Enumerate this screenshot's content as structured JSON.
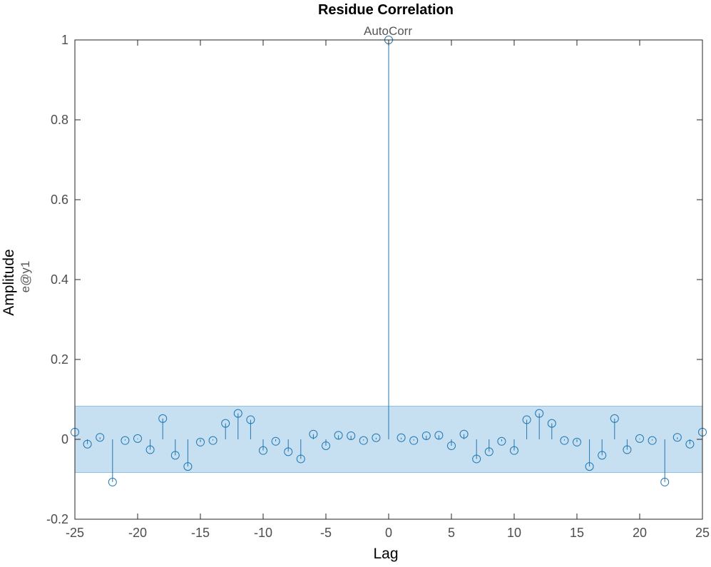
{
  "chart_data": {
    "type": "stem",
    "title": "Residue Correlation",
    "subtitle": "AutoCorr",
    "xlabel": "Lag",
    "ylabel": "Amplitude",
    "ylabel_sub": "e@y1",
    "xlim": [
      -25,
      25
    ],
    "ylim": [
      -0.2,
      1
    ],
    "xticks": [
      -25,
      -20,
      -15,
      -10,
      -5,
      0,
      5,
      10,
      15,
      20,
      25
    ],
    "xtick_labels": [
      "-25",
      "-20",
      "-15",
      "-10",
      "-5",
      "0",
      "5",
      "10",
      "15",
      "20",
      "25"
    ],
    "yticks": [
      -0.2,
      0,
      0.2,
      0.4,
      0.6,
      0.8,
      1
    ],
    "ytick_labels": [
      "-0.2",
      "0",
      "0.2",
      "0.4",
      "0.6",
      "0.8",
      "1"
    ],
    "confidence_band": [
      -0.083,
      0.083
    ],
    "grid": false,
    "colors": {
      "stem": "#1f77b4",
      "band_fill": "#c6e0f1",
      "band_edge": "#8cc0e3",
      "axis": "#262626"
    },
    "x": [
      -25,
      -24,
      -23,
      -22,
      -21,
      -20,
      -19,
      -18,
      -17,
      -16,
      -15,
      -14,
      -13,
      -12,
      -11,
      -10,
      -9,
      -8,
      -7,
      -6,
      -5,
      -4,
      -3,
      -2,
      -1,
      0,
      1,
      2,
      3,
      4,
      5,
      6,
      7,
      8,
      9,
      10,
      11,
      12,
      13,
      14,
      15,
      16,
      17,
      18,
      19,
      20,
      21,
      22,
      23,
      24,
      25
    ],
    "values": [
      0.018,
      -0.012,
      0.005,
      -0.107,
      -0.003,
      0.002,
      -0.026,
      0.052,
      -0.04,
      -0.068,
      -0.007,
      -0.003,
      0.04,
      0.065,
      0.049,
      -0.028,
      -0.005,
      -0.031,
      -0.049,
      0.013,
      -0.016,
      0.01,
      0.009,
      -0.003,
      0.004,
      1.0,
      0.004,
      -0.003,
      0.009,
      0.01,
      -0.016,
      0.013,
      -0.049,
      -0.031,
      -0.005,
      -0.028,
      0.049,
      0.065,
      0.04,
      -0.003,
      -0.007,
      -0.068,
      -0.04,
      0.052,
      -0.026,
      0.002,
      -0.003,
      -0.107,
      0.005,
      -0.012,
      0.018
    ]
  }
}
